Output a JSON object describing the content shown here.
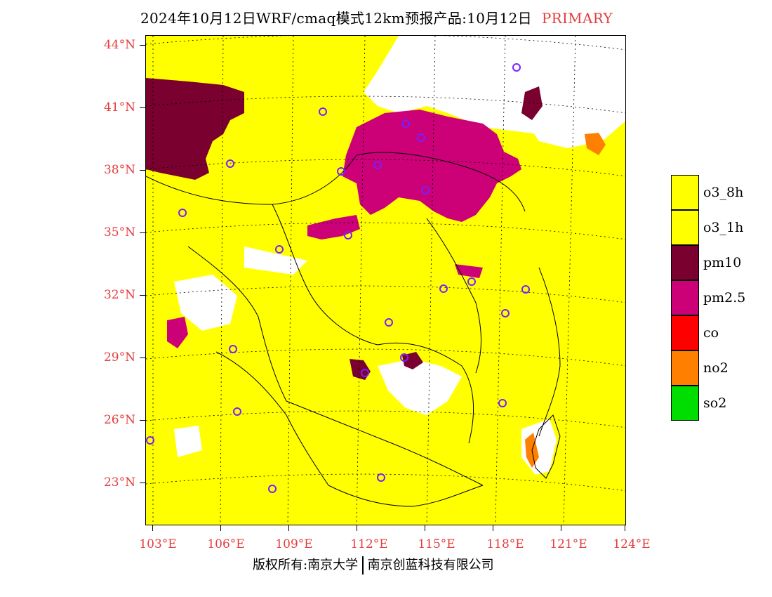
{
  "title": {
    "main": "2024年10月12日WRF/cmaq模式12km预报产品:10月12日",
    "tag": "PRIMARY",
    "tag_color": "#e63c3c"
  },
  "map": {
    "lat_labels": [
      "44°N",
      "41°N",
      "38°N",
      "35°N",
      "32°N",
      "29°N",
      "26°N",
      "23°N"
    ],
    "lon_labels": [
      "103°E",
      "106°E",
      "109°E",
      "112°E",
      "115°E",
      "118°E",
      "121°E",
      "124°E"
    ],
    "background_color": "#ffff00"
  },
  "legend": {
    "items": [
      {
        "label": "o3_8h",
        "color": "#ffff00"
      },
      {
        "label": "o3_1h",
        "color": "#ffff00"
      },
      {
        "label": "pm10",
        "color": "#7a0030"
      },
      {
        "label": "pm2.5",
        "color": "#cc0077"
      },
      {
        "label": "co",
        "color": "#ff0000"
      },
      {
        "label": "no2",
        "color": "#ff7f00"
      },
      {
        "label": "so2",
        "color": "#00dd00"
      }
    ]
  },
  "footer": {
    "left": "版权所有:南京大学",
    "right": "南京创蓝科技有限公司"
  }
}
